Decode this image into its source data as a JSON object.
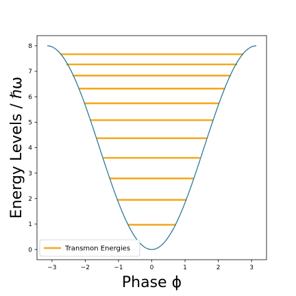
{
  "chart_data": {
    "type": "line",
    "xlabel": "Phase ϕ",
    "ylabel": "Energy Levels / ℏω",
    "xlim": [
      -3.45,
      3.45
    ],
    "ylim": [
      -0.4,
      8.4
    ],
    "xticks": [
      -3,
      -2,
      -1,
      0,
      1,
      2,
      3
    ],
    "yticks": [
      0,
      1,
      2,
      3,
      4,
      5,
      6,
      7,
      8
    ],
    "grid": false,
    "legend_position": "lower-left",
    "potential": {
      "type": "line",
      "color": "#2a7a95",
      "formula": "4 * (1 - cos(phi))",
      "x_range": [
        -3.14159,
        3.14159
      ]
    },
    "series": [
      {
        "name": "Transmon Energies",
        "type": "hlines",
        "color": "#f5a81e",
        "levels": [
          {
            "energy": 0.97,
            "phi_min": -0.72,
            "phi_max": 0.72
          },
          {
            "energy": 1.95,
            "phi_min": -1.05,
            "phi_max": 1.05
          },
          {
            "energy": 2.79,
            "phi_min": -1.26,
            "phi_max": 1.26
          },
          {
            "energy": 3.6,
            "phi_min": -1.45,
            "phi_max": 1.45
          },
          {
            "energy": 4.37,
            "phi_min": -1.65,
            "phi_max": 1.65
          },
          {
            "energy": 5.08,
            "phi_min": -1.84,
            "phi_max": 1.84
          },
          {
            "energy": 5.74,
            "phi_min": -2.03,
            "phi_max": 2.03
          },
          {
            "energy": 6.32,
            "phi_min": -2.2,
            "phi_max": 2.2
          },
          {
            "energy": 6.83,
            "phi_min": -2.38,
            "phi_max": 2.38
          },
          {
            "energy": 7.27,
            "phi_min": -2.57,
            "phi_max": 2.57
          },
          {
            "energy": 7.67,
            "phi_min": -2.75,
            "phi_max": 2.75
          }
        ]
      }
    ]
  }
}
